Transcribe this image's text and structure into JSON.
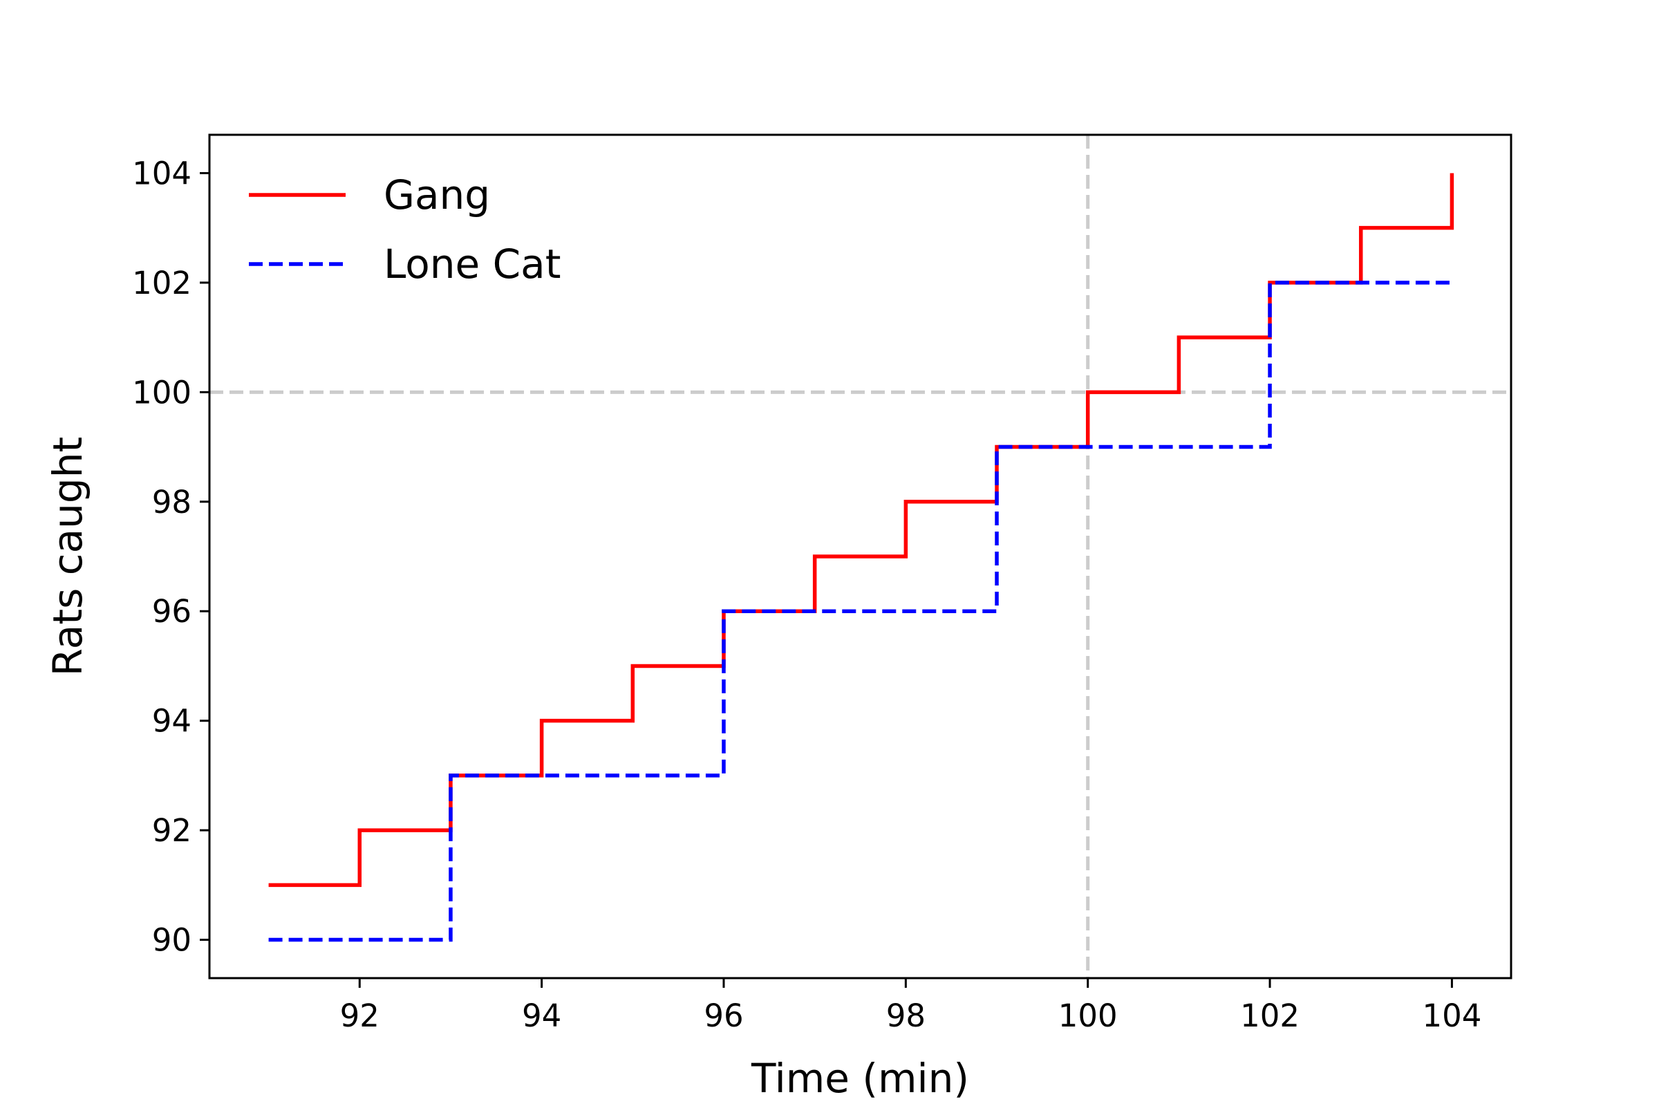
{
  "chart_data": {
    "type": "line",
    "drawstyle": "steps-post",
    "xlabel": "Time (min)",
    "ylabel": "Rats caught",
    "xlim": [
      90.35,
      104.65
    ],
    "ylim": [
      89.3,
      104.7
    ],
    "xticks": [
      92,
      94,
      96,
      98,
      100,
      102,
      104
    ],
    "yticks": [
      90,
      92,
      94,
      96,
      98,
      100,
      102,
      104
    ],
    "legend_position": "upper-left",
    "grid": false,
    "reference_lines": [
      {
        "orientation": "horizontal",
        "value": 100,
        "color": "#cccccc",
        "style": "dashed"
      },
      {
        "orientation": "vertical",
        "value": 100,
        "color": "#cccccc",
        "style": "dashed"
      }
    ],
    "x": [
      91,
      92,
      93,
      94,
      95,
      96,
      97,
      98,
      99,
      100,
      101,
      102,
      103,
      104
    ],
    "series": [
      {
        "name": "Gang",
        "color": "#ff0000",
        "style": "solid",
        "values": [
          91,
          92,
          93,
          94,
          95,
          96,
          97,
          98,
          99,
          100,
          101,
          102,
          103,
          104
        ]
      },
      {
        "name": "Lone Cat",
        "color": "#0000ff",
        "style": "dashed",
        "values": [
          90,
          90,
          93,
          93,
          93,
          96,
          96,
          96,
          99,
          99,
          99,
          102,
          102,
          102
        ]
      }
    ]
  }
}
